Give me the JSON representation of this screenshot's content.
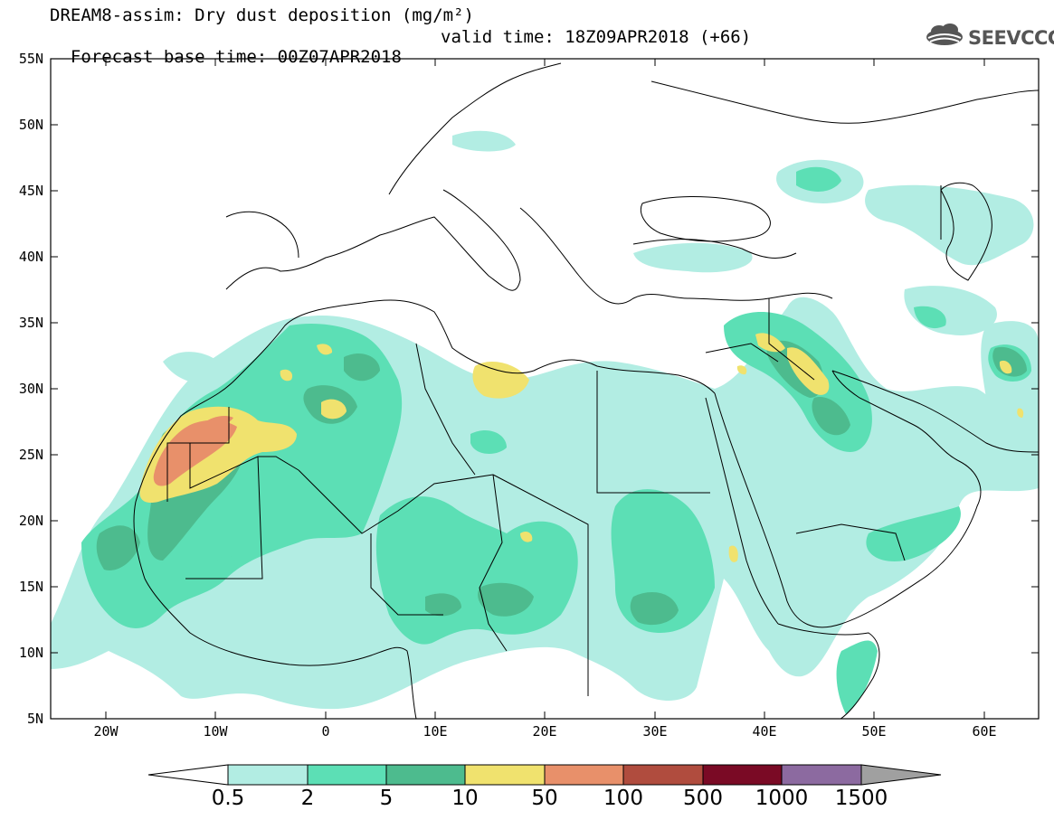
{
  "header": {
    "title_line1": "DREAM8-assim: Dry dust deposition (mg/m²)",
    "title_line2_base": "Forecast base time: 00Z07APR2018",
    "title_line2_valid": "valid time: 18Z09APR2018 (+66)"
  },
  "logo": {
    "text": "SEEVCCC",
    "icon": "cloud-icon"
  },
  "map": {
    "lat_labels": [
      "55N",
      "50N",
      "45N",
      "40N",
      "35N",
      "30N",
      "25N",
      "20N",
      "15N",
      "10N",
      "5N"
    ],
    "lon_labels": [
      "20W",
      "10W",
      "0",
      "10E",
      "20E",
      "30E",
      "40E",
      "50E",
      "60E"
    ]
  },
  "colorbar": {
    "labels": [
      "0.5",
      "2",
      "5",
      "10",
      "50",
      "100",
      "500",
      "1000",
      "1500"
    ],
    "colors": [
      "#ffffff",
      "#b2ede3",
      "#5cdfb5",
      "#4dbb8e",
      "#f0e26e",
      "#e8906a",
      "#b04c3e",
      "#7a0a25",
      "#8c6aa0",
      "#a0a0a0"
    ]
  },
  "colors": {
    "level1": "#b2ede3",
    "level2": "#5cdfb5",
    "level3": "#4dbb8e",
    "level4": "#f0e26e",
    "level5": "#e8906a",
    "logo": "#555555"
  }
}
